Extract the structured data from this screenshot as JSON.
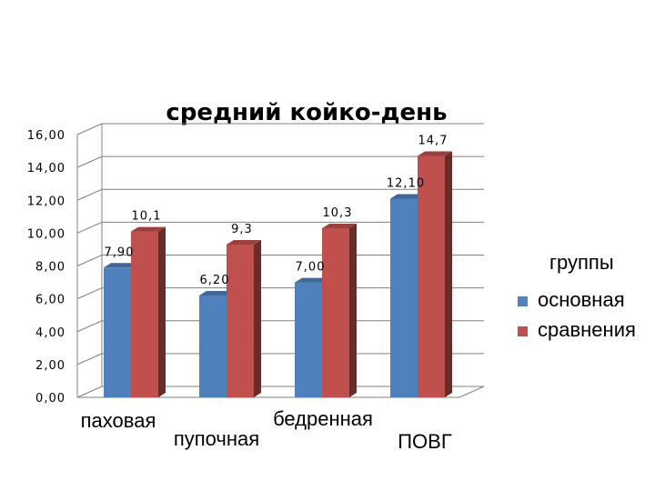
{
  "chart_data": {
    "type": "bar",
    "title": "средний койко-день",
    "categories": [
      "паховая",
      "пупочная",
      "бедренная",
      "ПОВГ"
    ],
    "series": [
      {
        "name": "основная",
        "values": [
          7.9,
          6.2,
          7.0,
          12.1
        ],
        "labels": [
          "7,90",
          "6,20",
          "7,00",
          "12,10"
        ],
        "color": "#4F81BD"
      },
      {
        "name": "сравнения",
        "values": [
          10.1,
          9.3,
          10.3,
          14.7
        ],
        "labels": [
          "10,1",
          "9,3",
          "10,3",
          "14,7"
        ],
        "color": "#C0504D"
      }
    ],
    "ylim": [
      0,
      16
    ],
    "yticks": [
      "0,00",
      "2,00",
      "4,00",
      "6,00",
      "8,00",
      "10,00",
      "12,00",
      "14,00",
      "16,00"
    ],
    "grid": true,
    "legend_title": "группы",
    "legend_position": "right"
  }
}
